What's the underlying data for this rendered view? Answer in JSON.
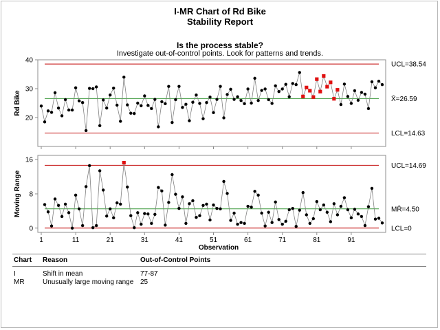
{
  "header": {
    "title_line1": "I-MR Chart of Rd Bike",
    "title_line2": "Stability Report",
    "question": "Is the process stable?",
    "instruction": "Investigate out-of-control points. Look for patterns and trends."
  },
  "colors": {
    "control_limit": "#c00000",
    "center_line": "#3c9a3c",
    "series_line": "#808080",
    "point": "#000000",
    "flagged_point": "#e01010"
  },
  "chart_data": [
    {
      "type": "line",
      "name": "individuals",
      "ylabel": "Rd Bike",
      "ylim": [
        10,
        40
      ],
      "yticks": [
        20,
        30,
        40
      ],
      "xlim": [
        0,
        101
      ],
      "xticks": [
        1,
        11,
        21,
        31,
        41,
        51,
        61,
        71,
        81,
        91
      ],
      "grid": false,
      "limits": {
        "ucl": 38.54,
        "center": 26.59,
        "lcl": 14.63,
        "ucl_label": "UCL=38.54",
        "center_label": "X̄=26.59",
        "lcl_label": "LCL=14.63"
      },
      "flagged_points": [
        77,
        78,
        79,
        80,
        81,
        82,
        83,
        84,
        85,
        86,
        87
      ],
      "values": [
        24.0,
        18.5,
        22.3,
        21.8,
        28.6,
        23.3,
        20.6,
        26.2,
        22.6,
        22.6,
        30.3,
        25.8,
        25.2,
        15.5,
        30.1,
        30.0,
        30.6,
        17.2,
        26.1,
        23.3,
        27.8,
        30.2,
        24.3,
        18.7,
        34.0,
        24.4,
        21.5,
        21.4,
        25.0,
        24.1,
        27.5,
        24.2,
        23.1,
        26.3,
        16.8,
        25.5,
        24.8,
        30.8,
        18.3,
        26.2,
        30.8,
        23.5,
        24.6,
        18.9,
        25.3,
        27.8,
        24.9,
        19.6,
        25.2,
        27.1,
        21.7,
        26.3,
        30.8,
        19.9,
        28.0,
        29.8,
        26.3,
        27.2,
        25.9,
        24.8,
        29.9,
        25.0,
        33.6,
        25.9,
        29.4,
        29.9,
        26.2,
        24.9,
        31.0,
        29.0,
        29.9,
        31.5,
        27.2,
        31.8,
        31.4,
        35.6,
        27.3,
        30.4,
        29.3,
        27.1,
        33.3,
        29.0,
        34.4,
        30.7,
        32.2,
        26.5,
        29.6,
        24.5,
        31.6,
        27.3,
        24.9,
        29.3,
        26.0,
        28.7,
        28.1,
        23.1,
        32.4,
        30.3,
        32.6,
        31.4
      ]
    },
    {
      "type": "line",
      "name": "moving-range",
      "xlabel": "Observation",
      "ylabel": "Moving Range",
      "ylim": [
        -1,
        17
      ],
      "yticks": [
        0,
        8,
        16
      ],
      "xlim": [
        0,
        101
      ],
      "xticks": [
        1,
        11,
        21,
        31,
        41,
        51,
        61,
        71,
        81,
        91
      ],
      "xtick_labels": [
        "1",
        "11",
        "21",
        "31",
        "41",
        "51",
        "61",
        "71",
        "81",
        "91"
      ],
      "grid": false,
      "limits": {
        "ucl": 14.69,
        "center": 4.5,
        "lcl": 0,
        "ucl_label": "UCL=14.69",
        "center_label": "MR̄=4.50",
        "lcl_label": "LCL=0"
      },
      "flagged_points": [
        25
      ],
      "x_start": 2,
      "values": [
        5.5,
        3.8,
        0.5,
        6.8,
        5.3,
        2.7,
        5.6,
        3.6,
        0.0,
        7.7,
        4.5,
        0.6,
        9.7,
        14.6,
        0.1,
        0.6,
        13.4,
        8.9,
        2.8,
        4.5,
        2.4,
        5.9,
        5.6,
        15.3,
        9.6,
        2.9,
        0.1,
        3.6,
        0.9,
        3.4,
        3.3,
        1.1,
        3.2,
        9.5,
        8.7,
        0.7,
        6.0,
        12.5,
        7.9,
        4.6,
        7.3,
        1.1,
        5.7,
        6.4,
        2.5,
        2.9,
        5.3,
        5.6,
        1.9,
        5.4,
        4.6,
        4.5,
        10.9,
        8.1,
        1.8,
        3.5,
        0.9,
        1.3,
        1.1,
        5.1,
        4.9,
        8.6,
        7.7,
        3.5,
        0.5,
        3.7,
        1.3,
        6.1,
        2.0,
        0.9,
        1.6,
        4.3,
        4.6,
        0.4,
        4.2,
        8.3,
        3.1,
        1.1,
        2.2,
        6.2,
        4.3,
        5.4,
        3.7,
        1.5,
        5.7,
        3.1,
        5.1,
        7.1,
        4.3,
        2.4,
        4.4,
        3.3,
        2.7,
        0.6,
        5.0,
        9.3,
        2.1,
        2.3,
        1.2
      ]
    }
  ],
  "table": {
    "headers": {
      "chart": "Chart",
      "reason": "Reason",
      "points": "Out-of-Control Points"
    },
    "rows": [
      {
        "chart": "I",
        "reason": "Shift in mean",
        "points": "77-87"
      },
      {
        "chart": "MR",
        "reason": "Unusually large moving range",
        "points": "25"
      }
    ]
  }
}
